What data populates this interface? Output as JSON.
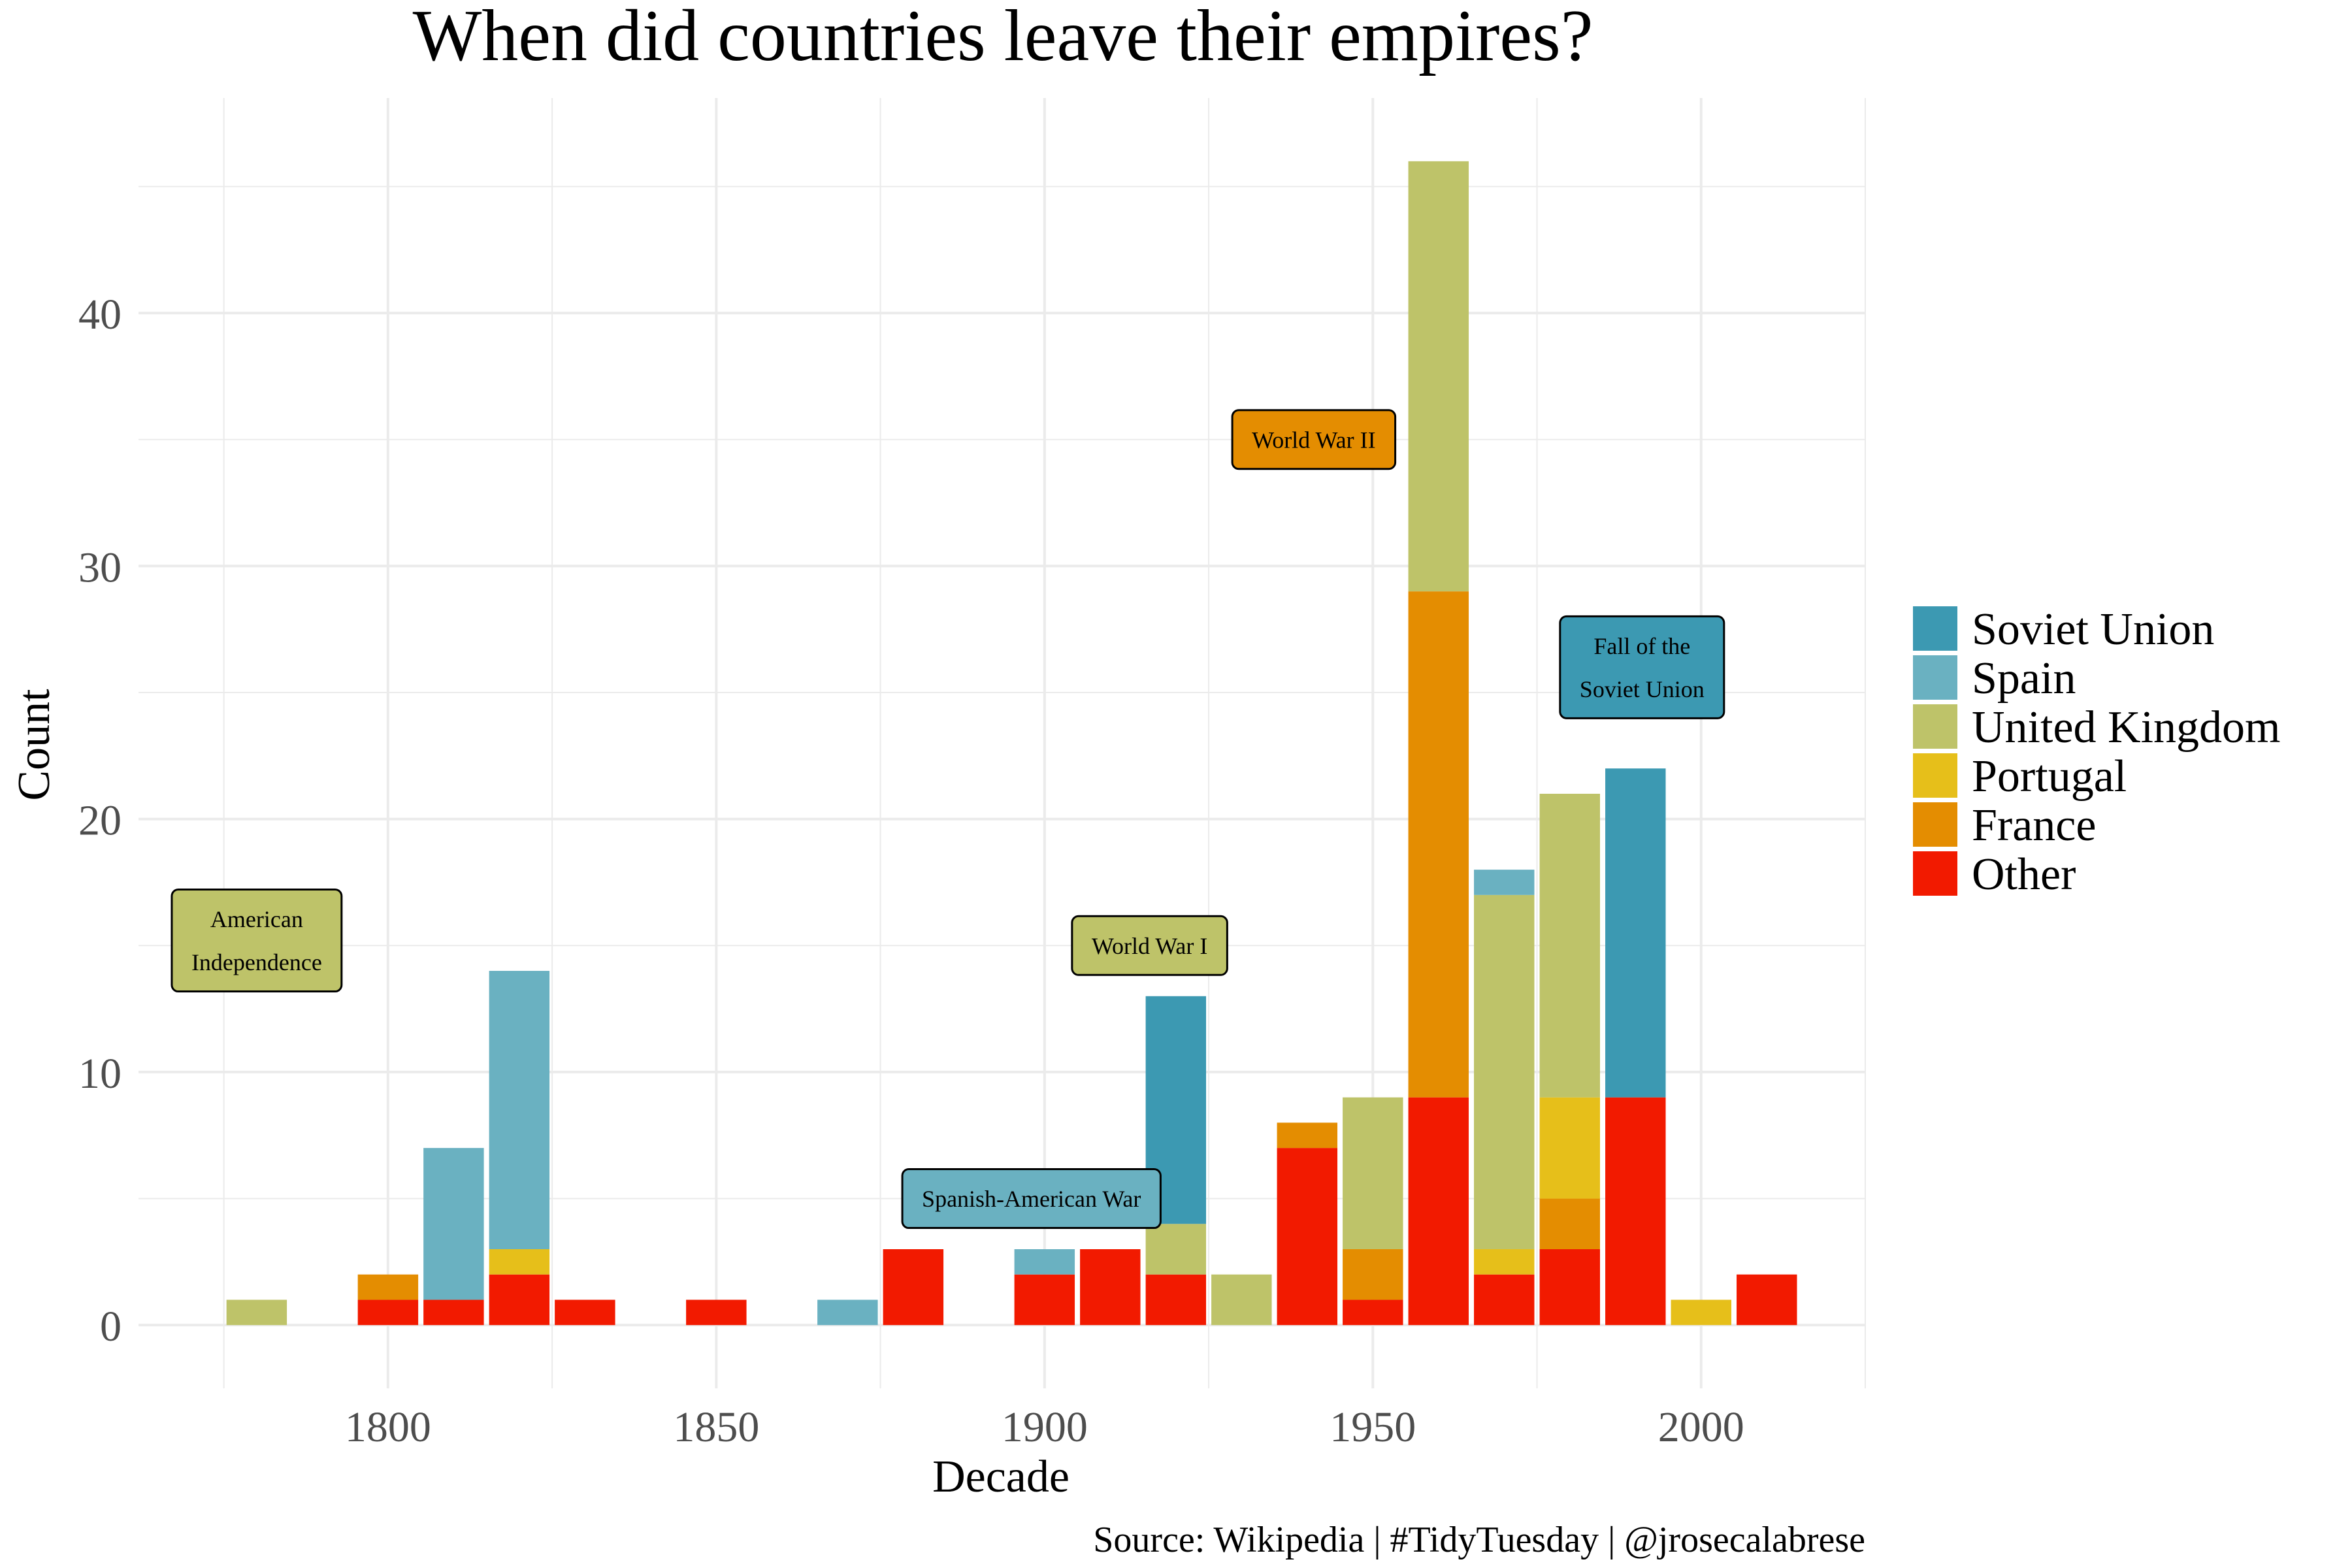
{
  "chart_data": {
    "type": "bar",
    "stacked": true,
    "title": "When did countries leave their empires?",
    "xlabel": "Decade",
    "ylabel": "Count",
    "caption": "Source: Wikipedia | #TidyTuesday | @jrosecalabrese",
    "xlim": [
      1762,
      2025
    ],
    "ylim": [
      -2.5,
      48.5
    ],
    "x_ticks": [
      1800,
      1850,
      1900,
      1950,
      2000
    ],
    "y_ticks": [
      0,
      10,
      20,
      30,
      40
    ],
    "bar_width_years": 9.2,
    "grid": true,
    "legend_position": "right",
    "stack_order": [
      "Other",
      "France",
      "Portugal",
      "United Kingdom",
      "Spain",
      "Soviet Union"
    ],
    "legend": [
      {
        "name": "Soviet Union",
        "color": "#3c99b2"
      },
      {
        "name": "Spain",
        "color": "#6ab1c1"
      },
      {
        "name": "United Kingdom",
        "color": "#bec369"
      },
      {
        "name": "Portugal",
        "color": "#e6bf1a"
      },
      {
        "name": "France",
        "color": "#e48d01"
      },
      {
        "name": "Other",
        "color": "#f21a00"
      }
    ],
    "decades": [
      1780,
      1800,
      1810,
      1820,
      1830,
      1850,
      1870,
      1880,
      1900,
      1910,
      1920,
      1930,
      1940,
      1950,
      1960,
      1970,
      1980,
      1990,
      2000,
      2010
    ],
    "series": [
      {
        "name": "Other",
        "values": [
          0,
          1,
          1,
          2,
          1,
          1,
          0,
          3,
          2,
          3,
          2,
          0,
          7,
          1,
          9,
          2,
          3,
          9,
          0,
          2
        ]
      },
      {
        "name": "France",
        "values": [
          0,
          1,
          0,
          0,
          0,
          0,
          0,
          0,
          0,
          0,
          0,
          0,
          1,
          2,
          20,
          0,
          2,
          0,
          0,
          0
        ]
      },
      {
        "name": "Portugal",
        "values": [
          0,
          0,
          0,
          1,
          0,
          0,
          0,
          0,
          0,
          0,
          0,
          0,
          0,
          0,
          0,
          1,
          4,
          0,
          1,
          0
        ]
      },
      {
        "name": "United Kingdom",
        "values": [
          1,
          0,
          0,
          0,
          0,
          0,
          0,
          0,
          0,
          0,
          2,
          2,
          0,
          6,
          17,
          14,
          12,
          0,
          0,
          0
        ]
      },
      {
        "name": "Spain",
        "values": [
          0,
          0,
          6,
          11,
          0,
          0,
          1,
          0,
          1,
          0,
          0,
          0,
          0,
          0,
          0,
          1,
          0,
          0,
          0,
          0
        ]
      },
      {
        "name": "Soviet Union",
        "values": [
          0,
          0,
          0,
          0,
          0,
          0,
          0,
          0,
          0,
          0,
          9,
          0,
          0,
          0,
          0,
          0,
          0,
          13,
          0,
          0
        ]
      }
    ],
    "annotations": [
      {
        "lines": [
          "American",
          "Independence"
        ],
        "x": 1780,
        "y": 15.2,
        "fill": "#bec369"
      },
      {
        "lines": [
          "Spanish-American War"
        ],
        "x": 1898,
        "y": 5,
        "fill": "#6ab1c1"
      },
      {
        "lines": [
          "World War I"
        ],
        "x": 1916,
        "y": 15,
        "fill": "#bec369"
      },
      {
        "lines": [
          "World War II"
        ],
        "x": 1941,
        "y": 35,
        "fill": "#e48d01"
      },
      {
        "lines": [
          "Fall of the",
          "Soviet Union"
        ],
        "x": 1991,
        "y": 26,
        "fill": "#3c99b2"
      }
    ]
  }
}
